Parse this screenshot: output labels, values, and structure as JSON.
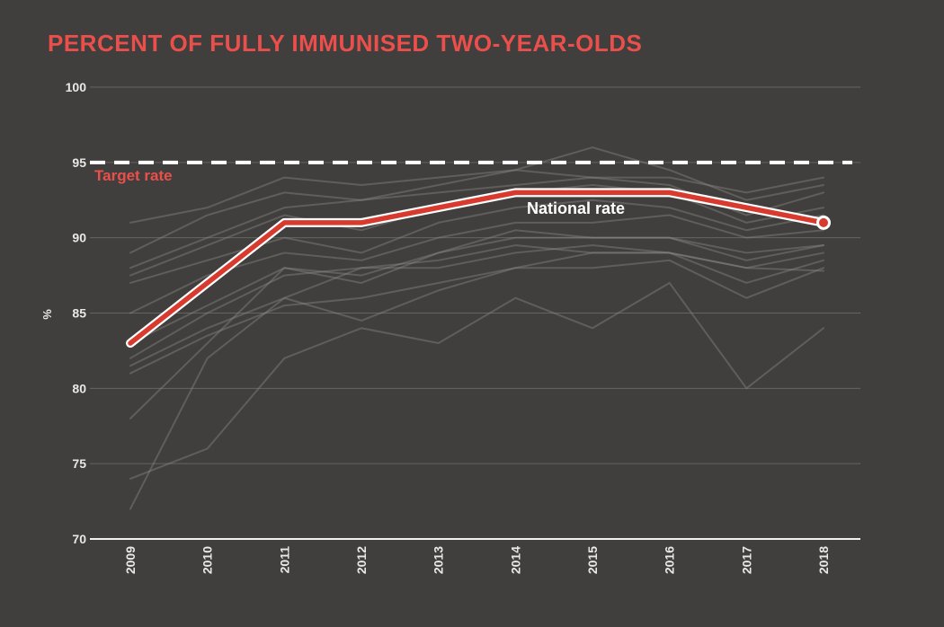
{
  "title": "PERCENT OF FULLY IMMUNISED TWO-YEAR-OLDS",
  "colors": {
    "background": "#403F3D",
    "title_text": "#EB4F4B",
    "national_line": "#D83A2D",
    "national_casing": "#FFFFFF",
    "target_line": "#FFFFFF",
    "target_label": "#EB4F4B",
    "national_label": "#FFFFFF",
    "regional_line": "#8A8B86",
    "gridline": "#8A8A85",
    "axis_line": "#F2F1EE",
    "tick_text": "#E9E8E4"
  },
  "chart_data": {
    "type": "line",
    "title": "PERCENT OF FULLY IMMUNISED TWO-YEAR-OLDS",
    "x": [
      "2009",
      "2010",
      "2011",
      "2012",
      "2013",
      "2014",
      "2015",
      "2016",
      "2017",
      "2018"
    ],
    "xlabel": "",
    "ylabel": "%",
    "ylim": [
      70,
      100
    ],
    "yticks": [
      70,
      75,
      80,
      85,
      90,
      95,
      100
    ],
    "grid": true,
    "legend_position": "inline-annotations",
    "target_line": {
      "value": 95,
      "label": "Target rate",
      "style": "dashed"
    },
    "national": {
      "name": "National rate",
      "values": [
        83,
        87,
        91,
        91,
        92,
        93,
        93,
        93,
        92,
        91
      ],
      "end_marker": true
    },
    "regional_series": [
      {
        "name": "regional-1",
        "values": [
          91,
          92,
          94,
          93.5,
          94,
          94.5,
          94,
          94,
          93,
          94
        ]
      },
      {
        "name": "regional-2",
        "values": [
          89,
          91.5,
          93,
          92.5,
          93.5,
          94.5,
          96,
          94.5,
          92.5,
          93.5
        ]
      },
      {
        "name": "regional-3",
        "values": [
          88,
          90,
          92,
          92.5,
          93,
          93.5,
          94,
          93.5,
          91.5,
          93
        ]
      },
      {
        "name": "regional-4",
        "values": [
          87.5,
          89.5,
          91.5,
          90.5,
          92,
          93,
          93.5,
          93,
          91,
          92
        ]
      },
      {
        "name": "regional-5",
        "values": [
          87,
          88.5,
          90,
          89,
          91,
          92,
          92.5,
          92,
          90.5,
          91.5
        ]
      },
      {
        "name": "regional-6",
        "values": [
          85,
          87.5,
          89,
          88.5,
          90,
          91,
          91,
          91.5,
          90,
          90.5
        ]
      },
      {
        "name": "regional-7",
        "values": [
          83,
          85.5,
          88,
          87,
          89,
          90,
          90,
          90,
          89,
          89.5
        ]
      },
      {
        "name": "regional-8",
        "values": [
          82,
          85,
          87.5,
          88,
          88,
          89,
          89.5,
          89,
          88,
          89
        ]
      },
      {
        "name": "regional-9",
        "values": [
          81.5,
          84,
          86,
          84.5,
          86.5,
          88,
          89,
          89,
          87,
          88.5
        ]
      },
      {
        "name": "regional-10",
        "values": [
          81,
          83.5,
          85.5,
          86,
          87,
          88,
          88,
          88.5,
          86,
          88
        ]
      },
      {
        "name": "regional-11",
        "values": [
          78,
          83,
          88,
          87.5,
          89,
          90.5,
          90,
          90,
          88.5,
          89.5
        ]
      },
      {
        "name": "regional-12",
        "values": [
          74,
          76,
          82,
          84,
          83,
          86,
          84,
          87,
          80,
          84
        ]
      },
      {
        "name": "regional-13",
        "values": [
          72,
          82,
          86,
          88,
          88.5,
          89.5,
          89,
          89,
          88,
          87.8
        ]
      }
    ]
  },
  "labels": {
    "target": "Target rate",
    "national": "National rate"
  }
}
